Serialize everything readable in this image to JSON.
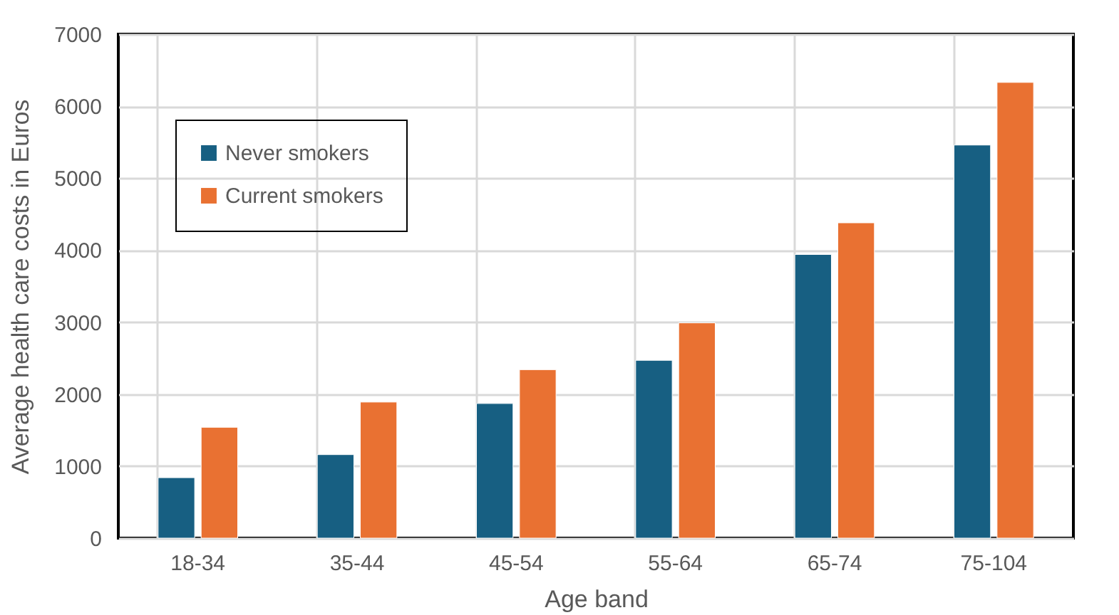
{
  "chart_data": {
    "type": "bar",
    "xlabel": "Age band",
    "ylabel": "Average health care costs in Euros",
    "categories": [
      "18-34",
      "35-44",
      "45-54",
      "55-64",
      "65-74",
      "75-104"
    ],
    "series": [
      {
        "name": "Never smokers",
        "color": "#175f82",
        "values": [
          840,
          1160,
          1870,
          2470,
          3940,
          5460
        ]
      },
      {
        "name": "Current smokers",
        "color": "#e97132",
        "values": [
          1540,
          1890,
          2340,
          2990,
          4380,
          6330
        ]
      }
    ],
    "ylim": [
      0,
      7000
    ],
    "yticks": [
      0,
      1000,
      2000,
      3000,
      4000,
      5000,
      6000,
      7000
    ],
    "grid": true,
    "legend": "top left"
  }
}
